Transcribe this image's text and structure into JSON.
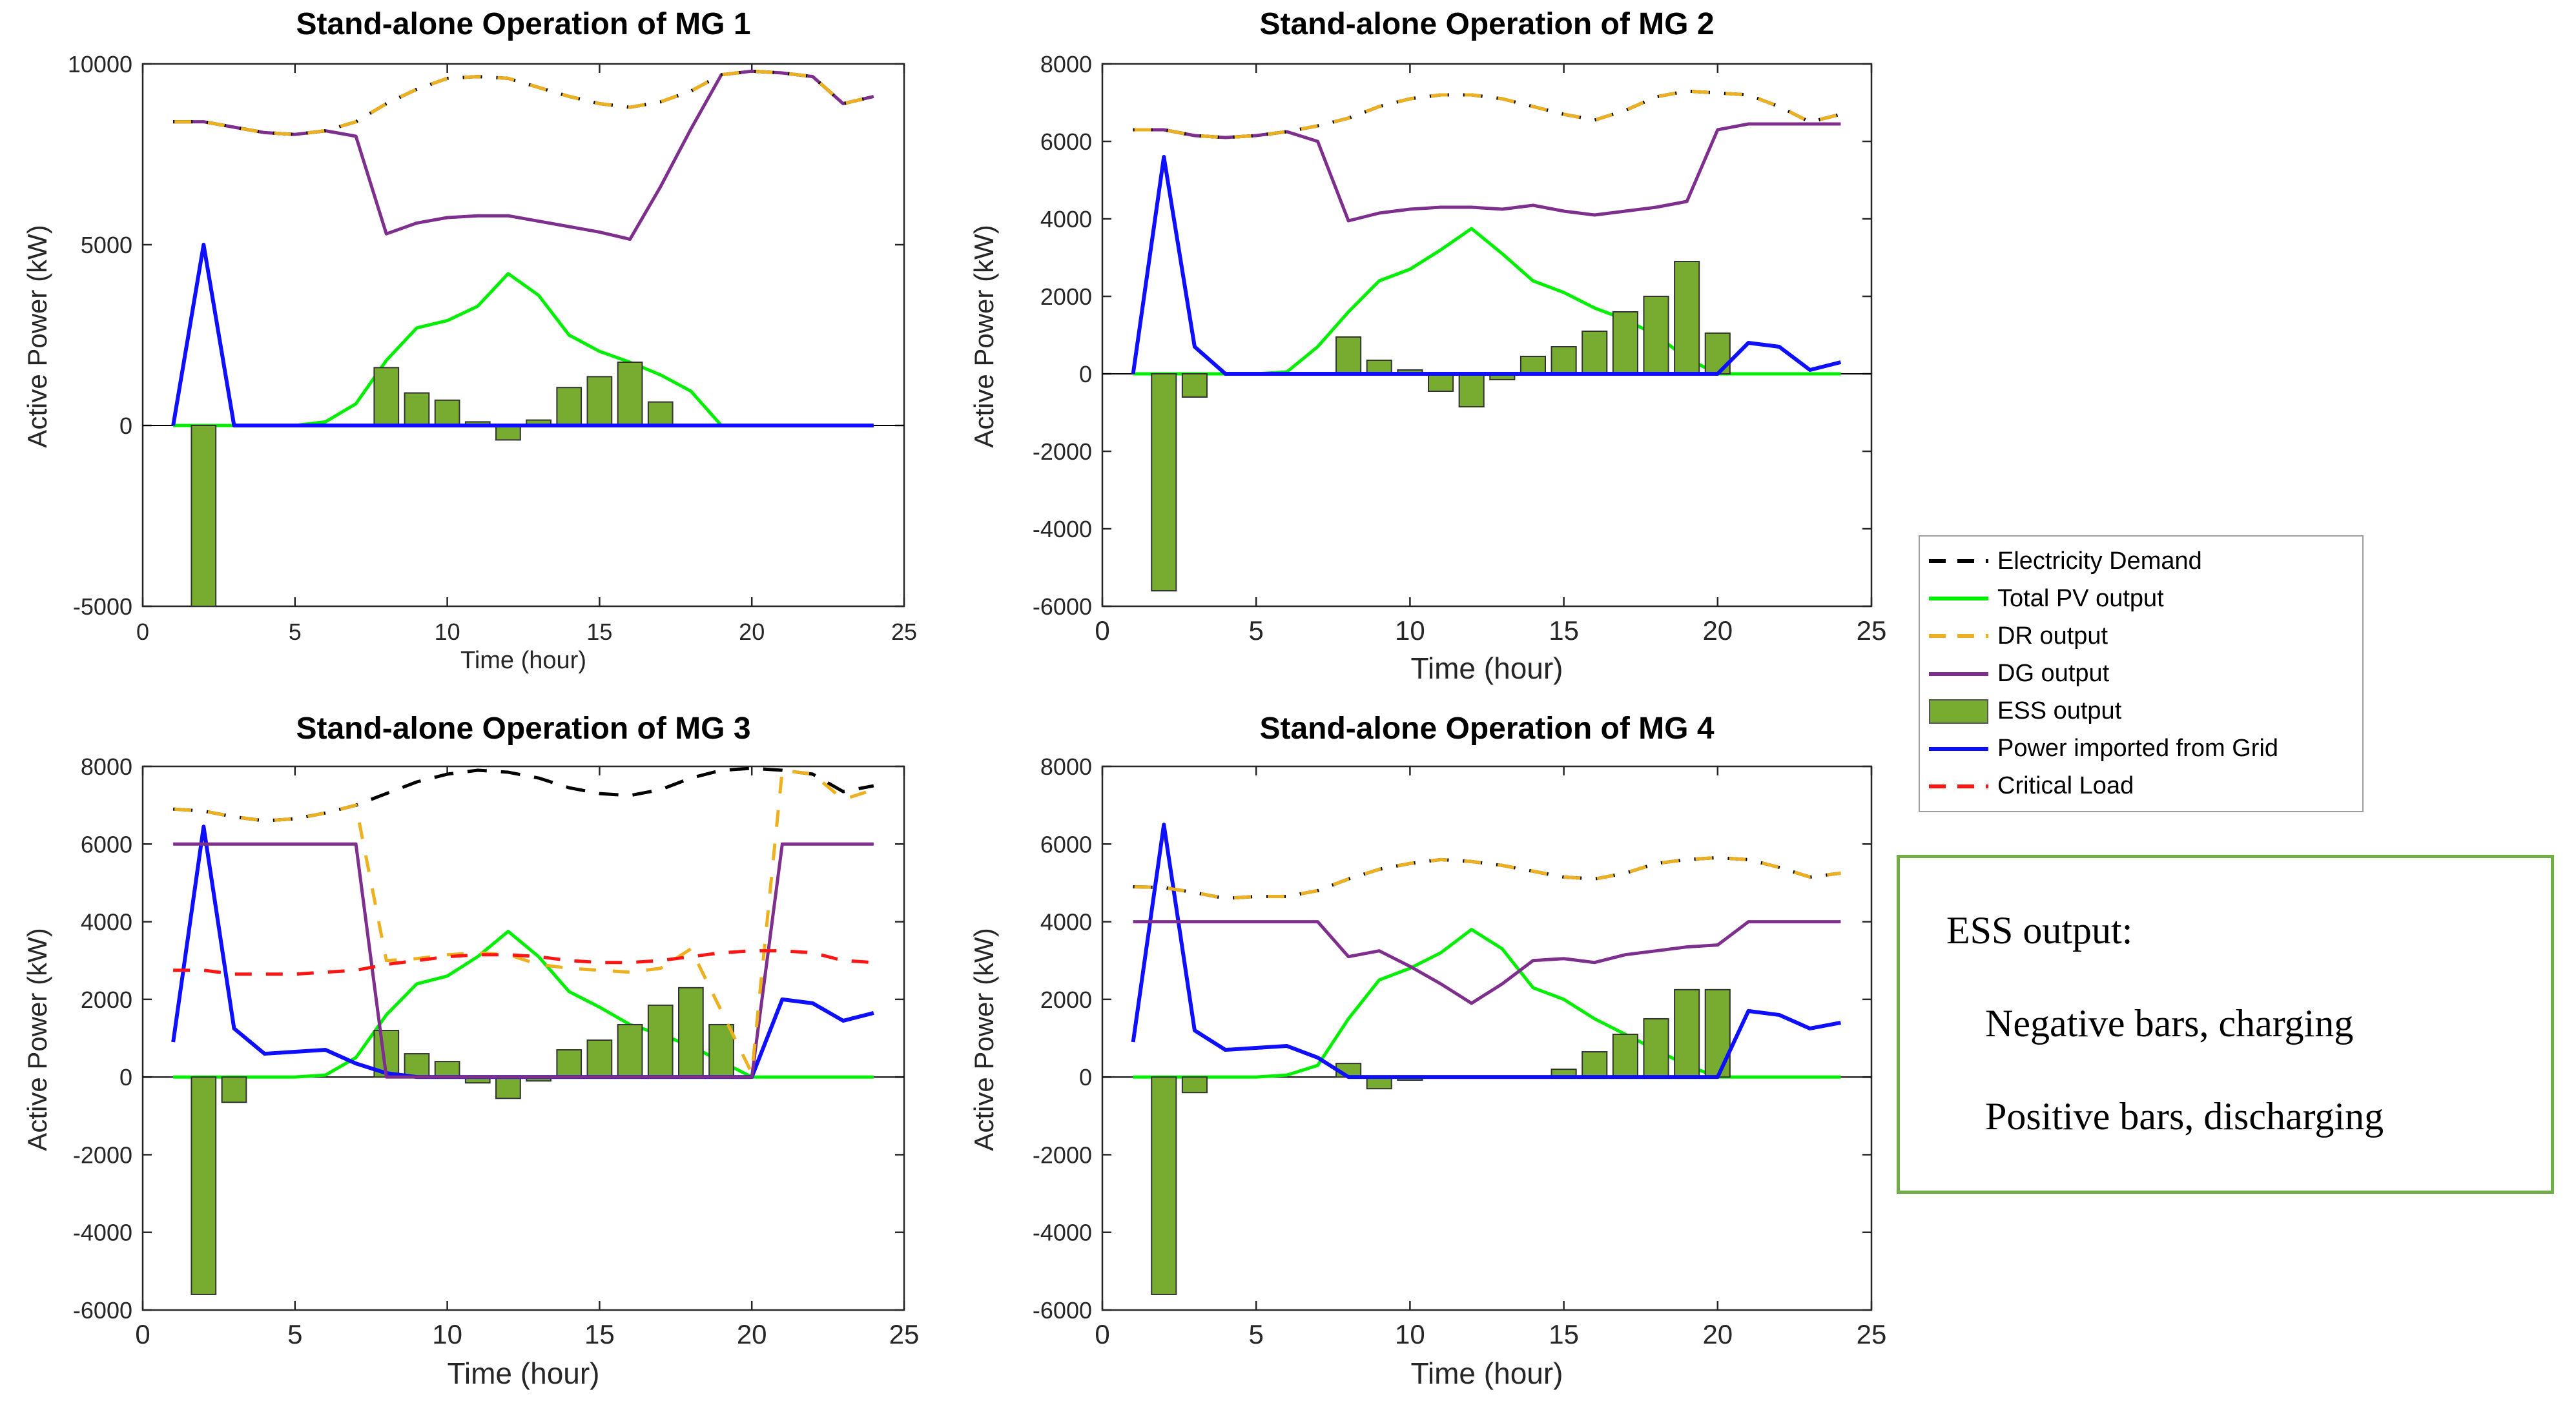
{
  "figure": {
    "background": "#ffffff",
    "axis_color": "#262626"
  },
  "colors": {
    "demand": "#000000",
    "pv": "#00ee00",
    "dr": "#edb120",
    "dg": "#7e2f8e",
    "ess_fill": "#77ac30",
    "ess_edge": "#333333",
    "grid": "#0f0fff",
    "critical": "#ff1414",
    "note_border": "#70AD47"
  },
  "legend": {
    "items": [
      {
        "key": "demand",
        "label": "Electricity Demand",
        "style": "dash",
        "color": "#000000"
      },
      {
        "key": "pv",
        "label": "Total PV output",
        "style": "solid",
        "color": "#00ee00"
      },
      {
        "key": "dr",
        "label": "DR output",
        "style": "dash",
        "color": "#edb120"
      },
      {
        "key": "dg",
        "label": "DG output",
        "style": "solid",
        "color": "#7e2f8e"
      },
      {
        "key": "ess",
        "label": "ESS output",
        "style": "bar",
        "color": "#77ac30"
      },
      {
        "key": "grid",
        "label": "Power imported from Grid",
        "style": "solid",
        "color": "#0f0fff"
      },
      {
        "key": "critical",
        "label": "Critical Load",
        "style": "dash",
        "color": "#ff1414"
      }
    ]
  },
  "note_box": {
    "line1": "ESS output:",
    "line2": "Negative bars, charging",
    "line3": "Positive bars, discharging"
  },
  "chart_data": [
    {
      "type": "combo-bar-line",
      "title": "Stand-alone Operation of MG 1",
      "xlabel": "Time (hour)",
      "ylabel": "Active Power (kW)",
      "xlim": [
        0,
        25
      ],
      "ylim": [
        -5000,
        10000
      ],
      "xticks": [
        0,
        5,
        10,
        15,
        20,
        25
      ],
      "yticks": [
        -5000,
        0,
        5000,
        10000
      ],
      "x": [
        1,
        2,
        3,
        4,
        5,
        6,
        7,
        8,
        9,
        10,
        11,
        12,
        13,
        14,
        15,
        16,
        17,
        18,
        19,
        20,
        21,
        22,
        23,
        24
      ],
      "series": {
        "demand": [
          8400,
          8400,
          8250,
          8100,
          8050,
          8150,
          8400,
          8900,
          9300,
          9600,
          9650,
          9600,
          9350,
          9100,
          8900,
          8800,
          8950,
          9250,
          9700,
          9800,
          9750,
          9650,
          8900,
          9100
        ],
        "dr": [
          8400,
          8400,
          8250,
          8100,
          8050,
          8150,
          8400,
          8900,
          9300,
          9600,
          9650,
          9600,
          9350,
          9100,
          8900,
          8800,
          8950,
          9250,
          9700,
          9800,
          9750,
          9650,
          8900,
          9100
        ],
        "dg": [
          8400,
          8400,
          8250,
          8100,
          8050,
          8150,
          8000,
          5300,
          5600,
          5750,
          5800,
          5800,
          5650,
          5500,
          5350,
          5150,
          6600,
          8200,
          9700,
          9800,
          9750,
          9650,
          8900,
          9100
        ],
        "pv": [
          0,
          0,
          0,
          0,
          0,
          100,
          600,
          1800,
          2700,
          2900,
          3300,
          4200,
          3600,
          2500,
          2050,
          1750,
          1400,
          950,
          0,
          0,
          0,
          0,
          0,
          0
        ],
        "grid": [
          0,
          5000,
          0,
          0,
          0,
          0,
          0,
          0,
          0,
          0,
          0,
          0,
          0,
          0,
          0,
          0,
          0,
          0,
          0,
          0,
          0,
          0,
          0,
          0
        ],
        "critical": null,
        "ess": [
          0,
          -5000,
          0,
          0,
          0,
          0,
          0,
          1600,
          900,
          700,
          100,
          -400,
          150,
          1050,
          1350,
          1750,
          650,
          0,
          0,
          0,
          0,
          0,
          0,
          0
        ]
      }
    },
    {
      "type": "combo-bar-line",
      "title": "Stand-alone Operation of MG 2",
      "xlabel": "Time (hour)",
      "ylabel": "Active Power (kW)",
      "xlim": [
        0,
        25
      ],
      "ylim": [
        -6000,
        8000
      ],
      "xticks": [
        0,
        5,
        10,
        15,
        20,
        25
      ],
      "yticks": [
        -6000,
        -4000,
        -2000,
        0,
        2000,
        4000,
        6000,
        8000
      ],
      "x": [
        1,
        2,
        3,
        4,
        5,
        6,
        7,
        8,
        9,
        10,
        11,
        12,
        13,
        14,
        15,
        16,
        17,
        18,
        19,
        20,
        21,
        22,
        23,
        24
      ],
      "series": {
        "demand": [
          6300,
          6300,
          6150,
          6100,
          6150,
          6250,
          6400,
          6600,
          6900,
          7100,
          7200,
          7200,
          7100,
          6900,
          6700,
          6550,
          6800,
          7150,
          7300,
          7250,
          7200,
          6900,
          6500,
          6700
        ],
        "dr": [
          6300,
          6300,
          6150,
          6100,
          6150,
          6250,
          6400,
          6600,
          6900,
          7100,
          7200,
          7200,
          7100,
          6900,
          6700,
          6550,
          6800,
          7150,
          7300,
          7250,
          7200,
          6900,
          6500,
          6700
        ],
        "dg": [
          6300,
          6300,
          6150,
          6100,
          6150,
          6250,
          6000,
          3950,
          4150,
          4250,
          4300,
          4300,
          4250,
          4350,
          4200,
          4100,
          4200,
          4300,
          4450,
          6300,
          6450,
          6450,
          6450,
          6450
        ],
        "pv": [
          0,
          0,
          0,
          0,
          0,
          50,
          700,
          1600,
          2400,
          2700,
          3200,
          3750,
          3100,
          2400,
          2100,
          1700,
          1400,
          1000,
          400,
          0,
          0,
          0,
          0,
          0
        ],
        "grid": [
          0,
          5600,
          700,
          0,
          0,
          0,
          0,
          0,
          0,
          0,
          0,
          0,
          0,
          0,
          0,
          0,
          0,
          0,
          0,
          0,
          800,
          700,
          100,
          300
        ],
        "critical": null,
        "ess": [
          0,
          -5600,
          -600,
          0,
          0,
          0,
          0,
          950,
          350,
          100,
          -450,
          -850,
          -150,
          450,
          700,
          1100,
          1600,
          2000,
          2900,
          1050,
          0,
          0,
          0,
          0
        ]
      }
    },
    {
      "type": "combo-bar-line",
      "title": "Stand-alone Operation of MG 3",
      "xlabel": "Time (hour)",
      "ylabel": "Active Power (kW)",
      "xlim": [
        0,
        25
      ],
      "ylim": [
        -6000,
        8000
      ],
      "xticks": [
        0,
        5,
        10,
        15,
        20,
        25
      ],
      "yticks": [
        -6000,
        -4000,
        -2000,
        0,
        2000,
        4000,
        6000,
        8000
      ],
      "x": [
        1,
        2,
        3,
        4,
        5,
        6,
        7,
        8,
        9,
        10,
        11,
        12,
        13,
        14,
        15,
        16,
        17,
        18,
        19,
        20,
        21,
        22,
        23,
        24
      ],
      "series": {
        "demand": [
          6900,
          6850,
          6700,
          6600,
          6650,
          6800,
          7000,
          7300,
          7600,
          7800,
          7900,
          7850,
          7700,
          7450,
          7300,
          7250,
          7400,
          7700,
          7900,
          7950,
          7900,
          7800,
          7350,
          7500
        ],
        "dr": [
          6900,
          6850,
          6700,
          6600,
          6650,
          6800,
          7000,
          3000,
          3050,
          3150,
          3200,
          3150,
          2900,
          2800,
          2750,
          2700,
          2800,
          3300,
          1700,
          100,
          7900,
          7800,
          7150,
          7400
        ],
        "dg": [
          6000,
          6000,
          6000,
          6000,
          6000,
          6000,
          6000,
          0,
          0,
          0,
          0,
          0,
          0,
          0,
          0,
          0,
          0,
          0,
          0,
          0,
          6000,
          6000,
          6000,
          6000
        ],
        "pv": [
          0,
          0,
          0,
          0,
          0,
          50,
          500,
          1600,
          2400,
          2600,
          3100,
          3750,
          3100,
          2200,
          1800,
          1350,
          1100,
          800,
          400,
          0,
          0,
          0,
          0,
          0
        ],
        "grid": [
          900,
          6450,
          1250,
          600,
          650,
          700,
          350,
          100,
          0,
          0,
          0,
          0,
          0,
          0,
          0,
          0,
          0,
          0,
          0,
          0,
          2000,
          1900,
          1450,
          1650
        ],
        "critical": [
          2750,
          2750,
          2650,
          2650,
          2650,
          2700,
          2750,
          2900,
          3000,
          3100,
          3150,
          3150,
          3100,
          3000,
          2950,
          2950,
          3000,
          3100,
          3200,
          3250,
          3250,
          3200,
          3000,
          2950
        ],
        "ess": [
          0,
          -5600,
          -650,
          0,
          0,
          0,
          0,
          1200,
          600,
          400,
          -150,
          -550,
          -100,
          700,
          950,
          1350,
          1850,
          2300,
          1350,
          0,
          0,
          0,
          0,
          0
        ]
      }
    },
    {
      "type": "combo-bar-line",
      "title": "Stand-alone Operation of MG 4",
      "xlabel": "Time (hour)",
      "ylabel": "Active Power (kW)",
      "xlim": [
        0,
        25
      ],
      "ylim": [
        -6000,
        8000
      ],
      "xticks": [
        0,
        5,
        10,
        15,
        20,
        25
      ],
      "yticks": [
        -6000,
        -4000,
        -2000,
        0,
        2000,
        4000,
        6000,
        8000
      ],
      "x": [
        1,
        2,
        3,
        4,
        5,
        6,
        7,
        8,
        9,
        10,
        11,
        12,
        13,
        14,
        15,
        16,
        17,
        18,
        19,
        20,
        21,
        22,
        23,
        24
      ],
      "series": {
        "demand": [
          4900,
          4880,
          4750,
          4600,
          4650,
          4650,
          4800,
          5100,
          5350,
          5500,
          5600,
          5550,
          5450,
          5300,
          5150,
          5100,
          5250,
          5500,
          5600,
          5650,
          5600,
          5400,
          5150,
          5250
        ],
        "dr": [
          4900,
          4880,
          4750,
          4600,
          4650,
          4650,
          4800,
          5100,
          5350,
          5500,
          5600,
          5550,
          5450,
          5300,
          5150,
          5100,
          5250,
          5500,
          5600,
          5650,
          5600,
          5400,
          5150,
          5250
        ],
        "dg": [
          4000,
          4000,
          4000,
          4000,
          4000,
          4000,
          4000,
          3100,
          3250,
          2850,
          2400,
          1900,
          2400,
          3000,
          3050,
          2950,
          3150,
          3250,
          3350,
          3400,
          4000,
          4000,
          4000,
          4000
        ],
        "pv": [
          0,
          0,
          0,
          0,
          0,
          50,
          300,
          1500,
          2500,
          2800,
          3200,
          3800,
          3300,
          2300,
          2000,
          1500,
          1100,
          700,
          300,
          0,
          0,
          0,
          0,
          0
        ],
        "grid": [
          900,
          6500,
          1200,
          700,
          750,
          800,
          500,
          0,
          0,
          0,
          0,
          0,
          0,
          0,
          0,
          0,
          0,
          0,
          0,
          0,
          1700,
          1600,
          1250,
          1400
        ],
        "critical": null,
        "ess": [
          0,
          -5600,
          -400,
          0,
          0,
          0,
          0,
          350,
          -300,
          -80,
          0,
          0,
          0,
          0,
          200,
          650,
          1100,
          1500,
          2250,
          2250,
          0,
          0,
          0,
          0
        ]
      }
    }
  ]
}
